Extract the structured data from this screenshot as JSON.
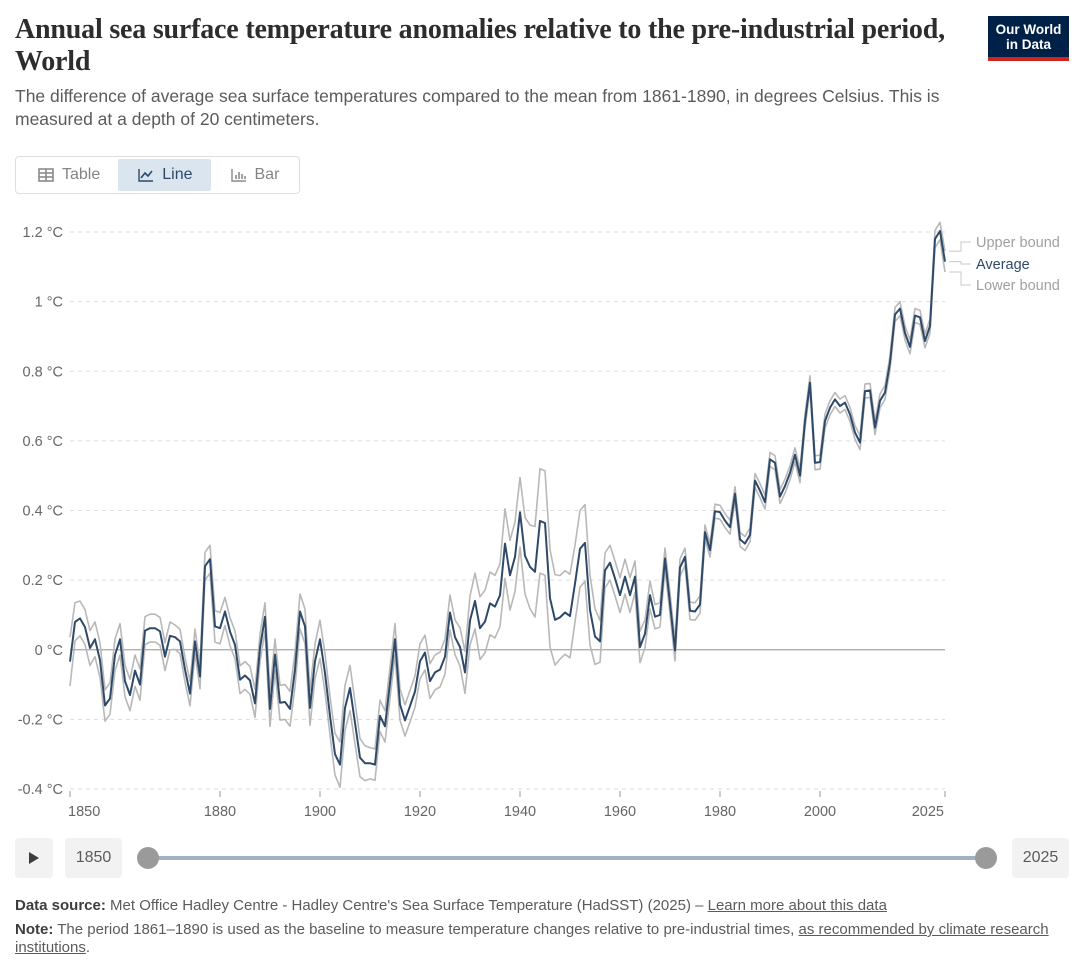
{
  "header": {
    "title": "Annual sea surface temperature anomalies relative to the pre-industrial period, World",
    "subtitle": "The difference of average sea surface temperatures compared to the mean from 1861-1890, in degrees Celsius. This is measured at a depth of 20 centimeters.",
    "logo_line1": "Our World",
    "logo_line2": "in Data"
  },
  "tabs": [
    {
      "label": "Table",
      "icon": "table-icon",
      "active": false
    },
    {
      "label": "Line",
      "icon": "line-chart-icon",
      "active": true
    },
    {
      "label": "Bar",
      "icon": "bar-chart-icon",
      "active": false
    }
  ],
  "colors": {
    "average": "#2f4a69",
    "bounds": "#b8b8b8",
    "zero_line": "#a6a6a6",
    "grid": "#dddddd",
    "brand": "#002147",
    "brand_accent": "#ce261e"
  },
  "chart_data": {
    "type": "line",
    "title": "Annual sea surface temperature anomalies relative to the pre-industrial period, World",
    "xlabel": "",
    "ylabel": "",
    "unit": "°C",
    "xlim": [
      1850,
      2025
    ],
    "ylim": [
      -0.4,
      1.2
    ],
    "x_ticks": [
      1850,
      1880,
      1900,
      1920,
      1940,
      1960,
      1980,
      2000,
      2025
    ],
    "y_ticks": [
      -0.4,
      -0.2,
      0,
      0.2,
      0.4,
      0.6,
      0.8,
      1,
      1.2
    ],
    "y_tick_labels": [
      "-0.4 °C",
      "-0.2 °C",
      "0 °C",
      "0.2 °C",
      "0.4 °C",
      "0.6 °C",
      "0.8 °C",
      "1 °C",
      "1.2 °C"
    ],
    "grid": "horizontal dashed",
    "legend_position": "right",
    "x_start": 1850,
    "series": [
      {
        "name": "Upper bound",
        "role": "upper"
      },
      {
        "name": "Average",
        "role": "average"
      },
      {
        "name": "Lower bound",
        "role": "lower"
      }
    ],
    "average": [
      -0.034,
      0.08,
      0.09,
      0.065,
      0.005,
      0.03,
      -0.03,
      -0.16,
      -0.14,
      -0.015,
      0.03,
      -0.09,
      -0.13,
      -0.06,
      -0.1,
      0.055,
      0.062,
      0.062,
      0.053,
      -0.02,
      0.04,
      0.036,
      0.024,
      -0.057,
      -0.126,
      0.024,
      -0.077,
      0.24,
      0.26,
      0.067,
      0.062,
      0.11,
      0.052,
      0.014,
      -0.086,
      -0.074,
      -0.088,
      -0.154,
      0.005,
      0.095,
      -0.17,
      -0.014,
      -0.152,
      -0.15,
      -0.17,
      -0.057,
      0.11,
      0.067,
      -0.167,
      -0.033,
      0.03,
      -0.067,
      -0.19,
      -0.3,
      -0.33,
      -0.167,
      -0.11,
      -0.21,
      -0.31,
      -0.326,
      -0.326,
      -0.33,
      -0.19,
      -0.22,
      -0.095,
      0.03,
      -0.157,
      -0.203,
      -0.162,
      -0.12,
      -0.033,
      -0.008,
      -0.09,
      -0.065,
      -0.057,
      -0.02,
      0.107,
      0.036,
      0.008,
      -0.065,
      0.084,
      0.14,
      0.062,
      0.081,
      0.133,
      0.124,
      0.157,
      0.305,
      0.214,
      0.267,
      0.395,
      0.27,
      0.238,
      0.224,
      0.37,
      0.364,
      0.148,
      0.086,
      0.093,
      0.107,
      0.097,
      0.19,
      0.29,
      0.307,
      0.114,
      0.038,
      0.024,
      0.228,
      0.25,
      0.205,
      0.157,
      0.21,
      0.157,
      0.21,
      0.008,
      0.046,
      0.157,
      0.095,
      0.1,
      0.262,
      0.133,
      -0.002,
      0.236,
      0.267,
      0.112,
      0.11,
      0.13,
      0.338,
      0.286,
      0.398,
      0.395,
      0.371,
      0.352,
      0.448,
      0.317,
      0.305,
      0.33,
      0.486,
      0.457,
      0.424,
      0.547,
      0.537,
      0.44,
      0.47,
      0.508,
      0.56,
      0.5,
      0.657,
      0.767,
      0.537,
      0.539,
      0.657,
      0.695,
      0.719,
      0.7,
      0.71,
      0.676,
      0.624,
      0.595,
      0.743,
      0.745,
      0.638,
      0.715,
      0.739,
      0.825,
      0.963,
      0.98,
      0.91,
      0.87,
      0.96,
      0.955,
      0.887,
      0.93,
      1.18,
      1.203,
      1.115
    ],
    "uncertainty": [
      0.07,
      0.055,
      0.05,
      0.05,
      0.05,
      0.05,
      0.05,
      0.045,
      0.045,
      0.045,
      0.045,
      0.045,
      0.045,
      0.045,
      0.045,
      0.04,
      0.04,
      0.04,
      0.04,
      0.04,
      0.04,
      0.035,
      0.035,
      0.035,
      0.035,
      0.035,
      0.035,
      0.04,
      0.04,
      0.045,
      0.045,
      0.04,
      0.04,
      0.04,
      0.04,
      0.04,
      0.04,
      0.04,
      0.04,
      0.04,
      0.05,
      0.045,
      0.05,
      0.05,
      0.05,
      0.05,
      0.05,
      0.05,
      0.05,
      0.05,
      0.055,
      0.055,
      0.055,
      0.06,
      0.065,
      0.065,
      0.065,
      0.06,
      0.055,
      0.05,
      0.045,
      0.045,
      0.045,
      0.045,
      0.045,
      0.045,
      0.045,
      0.045,
      0.045,
      0.045,
      0.05,
      0.05,
      0.05,
      0.05,
      0.05,
      0.05,
      0.05,
      0.05,
      0.055,
      0.06,
      0.07,
      0.08,
      0.09,
      0.09,
      0.09,
      0.09,
      0.09,
      0.1,
      0.1,
      0.1,
      0.1,
      0.11,
      0.12,
      0.13,
      0.15,
      0.15,
      0.14,
      0.13,
      0.12,
      0.12,
      0.12,
      0.11,
      0.11,
      0.11,
      0.1,
      0.08,
      0.06,
      0.05,
      0.05,
      0.05,
      0.05,
      0.05,
      0.05,
      0.045,
      0.045,
      0.04,
      0.04,
      0.035,
      0.035,
      0.03,
      0.03,
      0.03,
      0.025,
      0.025,
      0.025,
      0.025,
      0.025,
      0.02,
      0.02,
      0.02,
      0.02,
      0.02,
      0.02,
      0.02,
      0.02,
      0.02,
      0.02,
      0.02,
      0.02,
      0.02,
      0.02,
      0.02,
      0.02,
      0.02,
      0.02,
      0.02,
      0.02,
      0.02,
      0.02,
      0.02,
      0.02,
      0.02,
      0.02,
      0.02,
      0.02,
      0.02,
      0.02,
      0.02,
      0.02,
      0.02,
      0.02,
      0.02,
      0.02,
      0.02,
      0.02,
      0.02,
      0.02,
      0.02,
      0.02,
      0.02,
      0.02,
      0.02,
      0.02,
      0.025,
      0.025,
      0.03
    ]
  },
  "timeline": {
    "start_year": "1850",
    "end_year": "2025",
    "range_start_fraction": 0,
    "range_end_fraction": 1
  },
  "footer": {
    "source_label": "Data source:",
    "source_text": " Met Office Hadley Centre - Hadley Centre's Sea Surface Temperature (HadSST) (2025) – ",
    "source_link": "Learn more about this data",
    "note_label": "Note:",
    "note_text": " The period 1861–1890 is used as the baseline to measure temperature changes relative to pre-industrial times, ",
    "note_link": "as recommended by climate research institutions",
    "note_end": "."
  }
}
